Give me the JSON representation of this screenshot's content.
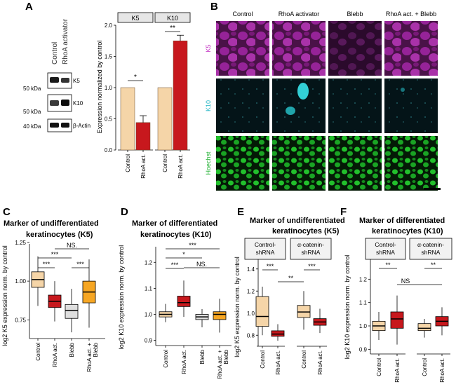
{
  "panels": {
    "A": {
      "letter": "A",
      "lanes": [
        "Control",
        "RhoA activator"
      ],
      "markers": [
        "50 kDa",
        "50 kDa",
        "40 kDa"
      ],
      "bands": [
        "K5",
        "K10",
        "β-Actin"
      ],
      "chart": {
        "type": "bar",
        "facets": [
          "K5",
          "K10"
        ],
        "categories": [
          "Control",
          "RhoA act."
        ],
        "values": [
          [
            1.0,
            0.44
          ],
          [
            1.0,
            1.75
          ]
        ],
        "errors": [
          [
            0,
            0.11
          ],
          [
            0,
            0.09
          ]
        ],
        "colors": [
          "#f5d5a8",
          "#c7181d"
        ],
        "ylabel": "Expression normalized by control",
        "ylim": [
          0,
          2.0
        ],
        "yticks": [
          "0.0",
          "0.5",
          "1.0",
          "1.5",
          "2.0"
        ],
        "sig": [
          "*",
          "**"
        ]
      }
    },
    "B": {
      "letter": "B",
      "columns": [
        "Control",
        "RhoA activator",
        "Blebb",
        "RhoA act. + Blebb"
      ],
      "rows": [
        {
          "label": "K5",
          "color": "#c02ac0"
        },
        {
          "label": "K10",
          "color": "#1ab3c3"
        },
        {
          "label": "Hoechst",
          "color": "#20b030"
        }
      ]
    },
    "C": {
      "letter": "C",
      "title1": "Marker of undifferentiated",
      "title2": "keratinocytes (K5)",
      "ylabel": "log2 K5 expression norm. by control",
      "ylim": [
        0.63,
        1.24
      ],
      "yticks": [
        "0.75",
        "1.00",
        "1.25"
      ],
      "categories": [
        "Control",
        "RhoA act.",
        "Blebb",
        "RhoA act. + Blebb"
      ],
      "boxes": [
        {
          "q1": 0.96,
          "med": 1.01,
          "q3": 1.06,
          "wlo": 0.84,
          "whi": 1.16
        },
        {
          "q1": 0.83,
          "med": 0.87,
          "q3": 0.91,
          "wlo": 0.74,
          "whi": 1.0
        },
        {
          "q1": 0.76,
          "med": 0.81,
          "q3": 0.85,
          "wlo": 0.67,
          "whi": 0.95
        },
        {
          "q1": 0.86,
          "med": 0.93,
          "q3": 1.0,
          "wlo": 0.7,
          "whi": 1.14
        }
      ],
      "sig": [
        "***",
        "***",
        "***",
        "NS."
      ]
    },
    "D": {
      "letter": "D",
      "title1": "Marker of differentiated",
      "title2": "keratinocytes (K10)",
      "ylabel": "log2 K10 expression norm. by control",
      "ylim": [
        0.88,
        1.26
      ],
      "yticks": [
        "0.9",
        "1.0",
        "1.1",
        "1.2"
      ],
      "categories": [
        "Control",
        "RhoA act.",
        "Blebb",
        "RhoA act. + Blebb"
      ],
      "boxes": [
        {
          "q1": 0.99,
          "med": 1.0,
          "q3": 1.01,
          "wlo": 0.97,
          "whi": 1.04
        },
        {
          "q1": 1.03,
          "med": 1.045,
          "q3": 1.07,
          "wlo": 0.99,
          "whi": 1.13
        },
        {
          "q1": 0.98,
          "med": 0.99,
          "q3": 1.0,
          "wlo": 0.95,
          "whi": 1.02
        },
        {
          "q1": 0.98,
          "med": 1.0,
          "q3": 1.01,
          "wlo": 0.93,
          "whi": 1.06
        }
      ],
      "sig": [
        "***",
        "*",
        "***",
        "NS."
      ]
    },
    "E": {
      "letter": "E",
      "title1": "Marker of undifferentiated",
      "title2": "keratinocytes (K5)",
      "ylabel": "log2 K5 expression norm. by control",
      "ylim": [
        0.7,
        1.5
      ],
      "yticks": [
        "0.8",
        "1.0",
        "1.2",
        "1.4"
      ],
      "facets": [
        "Control-\nshRNA",
        "α-catenin-\nshRNA"
      ],
      "categories": [
        "Control",
        "RhoA act.",
        "Control",
        "RhoA act."
      ],
      "boxes": [
        {
          "q1": 0.88,
          "med": 0.97,
          "q3": 1.15,
          "wlo": 0.8,
          "whi": 1.24
        },
        {
          "q1": 0.79,
          "med": 0.81,
          "q3": 0.84,
          "wlo": 0.75,
          "whi": 0.9
        },
        {
          "q1": 0.96,
          "med": 1.01,
          "q3": 1.07,
          "wlo": 0.85,
          "whi": 1.2
        },
        {
          "q1": 0.89,
          "med": 0.92,
          "q3": 0.95,
          "wlo": 0.82,
          "whi": 1.04
        }
      ],
      "sig": [
        "***",
        "***",
        "**"
      ]
    },
    "F": {
      "letter": "F",
      "title1": "Marker of differentiated",
      "title2": "keratinocytes (K10)",
      "ylabel": "log2 K10 expression norm. by control",
      "ylim": [
        0.88,
        1.33
      ],
      "yticks": [
        "0.9",
        "1.0",
        "1.1",
        "1.2"
      ],
      "facets": [
        "Control-\nshRNA",
        "α-catenin-\nshRNA"
      ],
      "categories": [
        "Control",
        "RhoA act.",
        "Control",
        "RhoA act."
      ],
      "boxes": [
        {
          "q1": 0.98,
          "med": 1.0,
          "q3": 1.02,
          "wlo": 0.94,
          "whi": 1.06
        },
        {
          "q1": 0.99,
          "med": 1.03,
          "q3": 1.06,
          "wlo": 0.92,
          "whi": 1.13
        },
        {
          "q1": 0.98,
          "med": 0.99,
          "q3": 1.01,
          "wlo": 0.95,
          "whi": 1.03
        },
        {
          "q1": 1.0,
          "med": 1.02,
          "q3": 1.04,
          "wlo": 0.96,
          "whi": 1.08
        }
      ],
      "sig": [
        "**",
        "**",
        "NS"
      ]
    }
  },
  "chart_data": [
    {
      "type": "bar",
      "panel": "A",
      "facets": [
        "K5",
        "K10"
      ],
      "categories": [
        "Control",
        "RhoA act."
      ],
      "series": [
        {
          "name": "K5",
          "values": [
            1.0,
            0.44
          ]
        },
        {
          "name": "K10",
          "values": [
            1.0,
            1.75
          ]
        }
      ],
      "ylabel": "Expression normalized by control",
      "ylim": [
        0,
        2.0
      ]
    },
    {
      "type": "box",
      "panel": "C",
      "categories": [
        "Control",
        "RhoA act.",
        "Blebb",
        "RhoA act. + Blebb"
      ],
      "medians": [
        1.01,
        0.87,
        0.81,
        0.93
      ],
      "ylim": [
        0.63,
        1.24
      ]
    },
    {
      "type": "box",
      "panel": "D",
      "categories": [
        "Control",
        "RhoA act.",
        "Blebb",
        "RhoA act. + Blebb"
      ],
      "medians": [
        1.0,
        1.045,
        0.99,
        1.0
      ],
      "ylim": [
        0.88,
        1.26
      ]
    },
    {
      "type": "box",
      "panel": "E",
      "categories": [
        "Control",
        "RhoA act.",
        "Control",
        "RhoA act."
      ],
      "medians": [
        0.97,
        0.81,
        1.01,
        0.92
      ],
      "ylim": [
        0.7,
        1.5
      ]
    },
    {
      "type": "box",
      "panel": "F",
      "categories": [
        "Control",
        "RhoA act.",
        "Control",
        "RhoA act."
      ],
      "medians": [
        1.0,
        1.03,
        0.99,
        1.02
      ],
      "ylim": [
        0.88,
        1.33
      ]
    }
  ],
  "colors": {
    "control": "#f5d5a8",
    "rhoa": "#c7181d",
    "blebb": "#dedede",
    "combo": "#f6a623"
  }
}
